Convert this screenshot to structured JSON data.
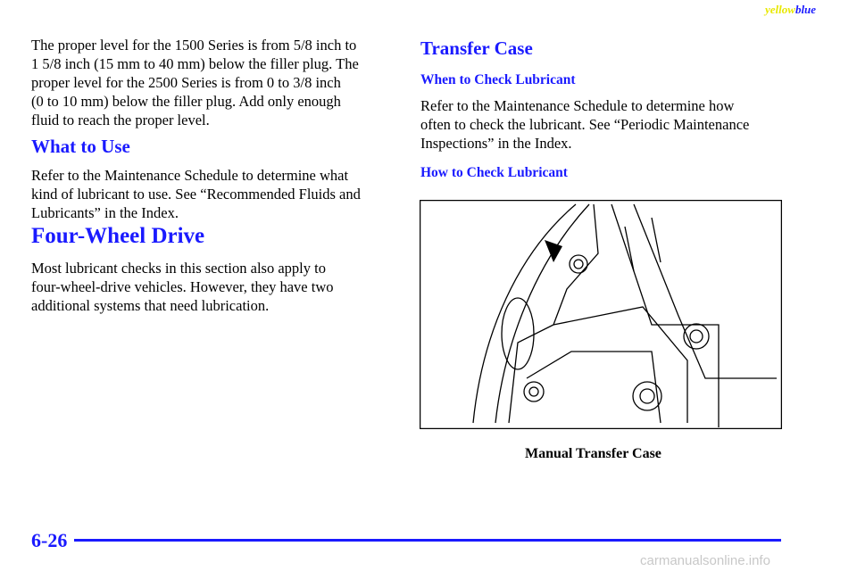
{
  "header": {
    "yellow": "yellow",
    "blue": "blue"
  },
  "left": {
    "paragraph1": [
      "The proper level for the 1500 Series is from 5/8 inch to",
      "1 5/8 inch (15 mm to 40 mm) below the filler plug. The",
      "proper level for the 2500 Series is from 0 to 3/8 inch",
      "(0 to 10 mm) below the filler plug. Add only enough",
      "fluid to reach the proper level."
    ],
    "heading1": "What to Use",
    "paragraph2": [
      "Refer to the Maintenance Schedule to determine what",
      "kind of lubricant to use. See “Recommended Fluids and",
      "Lubricants” in the Index."
    ],
    "heading2": "Four-Wheel Drive",
    "paragraph3": [
      "Most lubricant checks in this section also apply to",
      "four-wheel-drive vehicles. However, they have two",
      "additional systems that need lubrication."
    ]
  },
  "right": {
    "heading": "Transfer Case",
    "subheading1": "When to Check Lubricant",
    "paragraph1": [
      "Refer to the Maintenance Schedule to determine how",
      "often to check the lubricant. See “Periodic Maintenance",
      "Inspections” in the Index."
    ],
    "subheading2": "How to Check Lubricant",
    "figure_caption": "Manual Transfer Case"
  },
  "footer": {
    "page_number": "6-26",
    "watermark": "carmanualsonline.info"
  }
}
